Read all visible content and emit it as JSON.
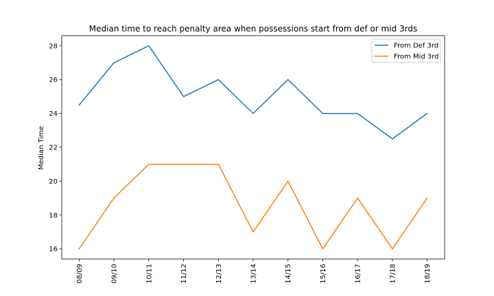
{
  "chart_data": {
    "type": "line",
    "title": "Median time to reach penalty area when possessions start from def or mid 3rds",
    "xlabel": "",
    "ylabel": "Median Time",
    "categories": [
      "08/09",
      "09/10",
      "10/11",
      "11/12",
      "12/13",
      "13/14",
      "14/15",
      "15/16",
      "16/17",
      "17/18",
      "18/19"
    ],
    "ylim": [
      15.4,
      28.6
    ],
    "yticks": [
      16,
      18,
      20,
      22,
      24,
      26,
      28
    ],
    "grid": false,
    "legend_position": "upper right",
    "series": [
      {
        "name": "From Def 3rd",
        "color": "#1f77b4",
        "values": [
          24.5,
          27,
          28,
          25,
          26,
          24,
          26,
          24,
          24,
          22.5,
          24
        ]
      },
      {
        "name": "From Mid 3rd",
        "color": "#ff7f0e",
        "values": [
          16,
          19,
          21,
          21,
          21,
          17,
          20,
          16,
          19,
          16,
          19
        ]
      }
    ]
  }
}
